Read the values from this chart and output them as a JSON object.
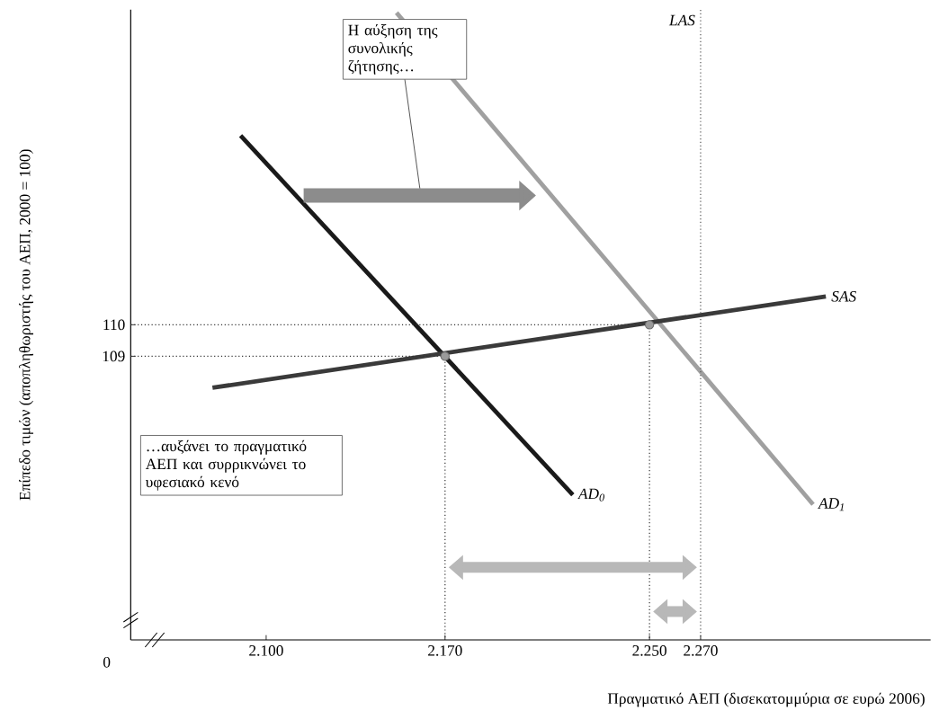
{
  "chart_data": {
    "type": "line",
    "xlabel": "Πραγματικό ΑΕΠ (δισεκατομμύρια σε ευρώ 2006)",
    "ylabel": "Επίπεδο τιμών (αποπληθωριστής του ΑΕΠ, 2000 = 100)",
    "xlim": [
      2047,
      2360
    ],
    "ylim": [
      100,
      120
    ],
    "xticks": [
      {
        "value": 2100,
        "label": "2.100"
      },
      {
        "value": 2170,
        "label": "2.170"
      },
      {
        "value": 2250,
        "label": "2.250"
      },
      {
        "value": 2270,
        "label": "2.270"
      }
    ],
    "yticks": [
      109,
      110
    ],
    "grid": false,
    "legend": false,
    "series": [
      {
        "name": "AD$_{0}$",
        "type": "line",
        "color": "#1a1a1a",
        "x": [
          2090,
          2220
        ],
        "values": [
          116,
          104.6
        ],
        "line_style": "solid",
        "marker": "none"
      },
      {
        "name": "AD$_{1}$",
        "type": "line",
        "color": "#a0a0a0",
        "x": [
          2151,
          2314
        ],
        "values": [
          119.9,
          104.3
        ],
        "line_style": "solid",
        "marker": "none"
      },
      {
        "name": "SAS",
        "type": "line",
        "color": "#3a3a3a",
        "x": [
          2079,
          2319
        ],
        "values": [
          108,
          110.9
        ],
        "line_style": "solid",
        "marker": "none"
      },
      {
        "type": "line",
        "color": "#333333",
        "x": [
          2047,
          2170,
          2170
        ],
        "values": [
          109,
          109,
          100
        ],
        "line_style": "dotted",
        "marker": "none"
      },
      {
        "type": "line",
        "color": "#333333",
        "x": [
          2047,
          2250,
          2250
        ],
        "values": [
          110,
          110,
          100
        ],
        "line_style": "dotted",
        "marker": "none"
      },
      {
        "type": "scatter",
        "color": "#9a9a9a",
        "x": [
          2170,
          2250
        ],
        "values": [
          109,
          110
        ],
        "marker": "circle"
      }
    ],
    "ref_lines": [
      {
        "axis": "x",
        "value": 2270,
        "label": "LAS",
        "line_style": "dotted",
        "color": "#555555"
      }
    ],
    "annotations": [
      "Η αύξηση της συνολικής ζήτησης…",
      "…αυξάνει το πραγματικό ΑΕΠ και συρρικνώνει το υφεσιακό κενό",
      "0"
    ]
  }
}
